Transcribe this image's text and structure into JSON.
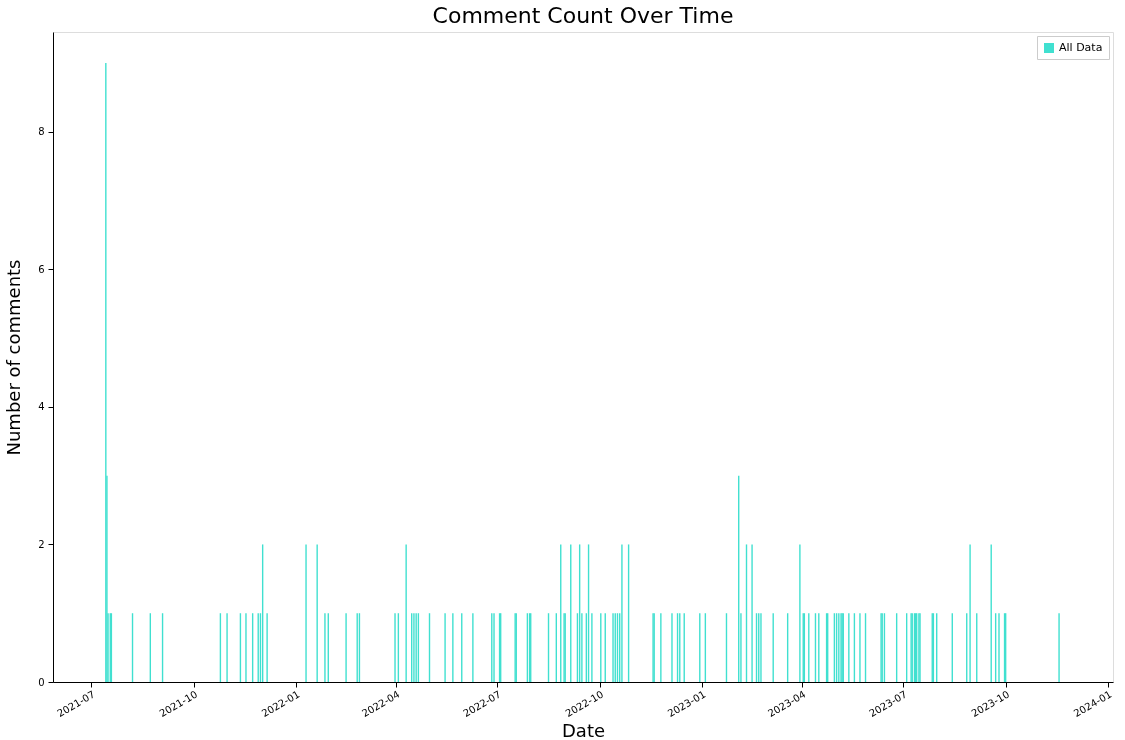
{
  "chart_data": {
    "type": "bar",
    "title": "Comment Count Over Time",
    "xlabel": "Date",
    "ylabel": "Number of comments",
    "x": [
      "2021-07-14",
      "2021-07-15",
      "2021-07-16",
      "2021-07-18",
      "2021-07-19",
      "2021-08-07",
      "2021-08-23",
      "2021-09-03",
      "2021-10-25",
      "2021-10-31",
      "2021-11-12",
      "2021-11-17",
      "2021-11-23",
      "2021-11-28",
      "2021-11-30",
      "2021-12-02",
      "2021-12-06",
      "2022-01-10",
      "2022-01-20",
      "2022-01-27",
      "2022-01-30",
      "2022-02-15",
      "2022-02-25",
      "2022-02-27",
      "2022-03-31",
      "2022-04-03",
      "2022-04-10",
      "2022-04-15",
      "2022-04-17",
      "2022-04-19",
      "2022-04-21",
      "2022-05-01",
      "2022-05-15",
      "2022-05-22",
      "2022-05-30",
      "2022-06-09",
      "2022-06-26",
      "2022-06-28",
      "2022-07-03",
      "2022-07-04",
      "2022-07-17",
      "2022-07-18",
      "2022-07-28",
      "2022-07-30",
      "2022-07-31",
      "2022-08-16",
      "2022-08-23",
      "2022-08-27",
      "2022-08-30",
      "2022-08-31",
      "2022-09-05",
      "2022-09-11",
      "2022-09-13",
      "2022-09-15",
      "2022-09-19",
      "2022-09-21",
      "2022-09-24",
      "2022-10-02",
      "2022-10-06",
      "2022-10-13",
      "2022-10-15",
      "2022-10-17",
      "2022-10-19",
      "2022-10-21",
      "2022-10-27",
      "2022-11-18",
      "2022-11-19",
      "2022-11-25",
      "2022-12-05",
      "2022-12-10",
      "2022-12-12",
      "2022-12-16",
      "2022-12-30",
      "2023-01-04",
      "2023-01-23",
      "2023-02-03",
      "2023-02-05",
      "2023-02-10",
      "2023-02-15",
      "2023-02-19",
      "2023-02-21",
      "2023-02-23",
      "2023-03-06",
      "2023-03-19",
      "2023-03-30",
      "2023-04-02",
      "2023-04-03",
      "2023-04-07",
      "2023-04-13",
      "2023-04-16",
      "2023-04-23",
      "2023-04-24",
      "2023-04-30",
      "2023-05-02",
      "2023-05-04",
      "2023-05-06",
      "2023-05-07",
      "2023-05-08",
      "2023-05-13",
      "2023-05-18",
      "2023-05-23",
      "2023-05-28",
      "2023-06-11",
      "2023-06-12",
      "2023-06-14",
      "2023-06-25",
      "2023-07-04",
      "2023-07-08",
      "2023-07-09",
      "2023-07-11",
      "2023-07-12",
      "2023-07-13",
      "2023-07-15",
      "2023-07-16",
      "2023-07-27",
      "2023-07-28",
      "2023-07-31",
      "2023-08-14",
      "2023-08-27",
      "2023-08-30",
      "2023-09-05",
      "2023-09-18",
      "2023-09-22",
      "2023-09-25",
      "2023-09-30",
      "2023-10-01",
      "2023-11-18"
    ],
    "series": [
      {
        "name": "All Data",
        "color": "#40e0d0",
        "values": [
          9,
          3,
          1,
          1,
          1,
          1,
          1,
          1,
          1,
          1,
          1,
          1,
          1,
          1,
          1,
          2,
          1,
          2,
          2,
          1,
          1,
          1,
          1,
          1,
          1,
          1,
          2,
          1,
          1,
          1,
          1,
          1,
          1,
          1,
          1,
          1,
          1,
          1,
          1,
          1,
          1,
          1,
          1,
          1,
          1,
          1,
          1,
          2,
          1,
          1,
          2,
          1,
          2,
          1,
          1,
          2,
          1,
          1,
          1,
          1,
          1,
          1,
          1,
          2,
          2,
          1,
          1,
          1,
          1,
          1,
          1,
          1,
          1,
          1,
          1,
          3,
          1,
          2,
          2,
          1,
          1,
          1,
          1,
          1,
          2,
          1,
          1,
          1,
          1,
          1,
          1,
          1,
          1,
          1,
          1,
          1,
          1,
          1,
          1,
          1,
          1,
          1,
          1,
          1,
          1,
          1,
          1,
          1,
          1,
          1,
          1,
          1,
          1,
          1,
          1,
          1,
          1,
          1,
          1,
          2,
          1,
          2,
          1,
          1,
          1,
          1,
          1
        ]
      }
    ],
    "xlim": [
      "2021-06-01",
      "2024-01-01"
    ],
    "xticks": [
      {
        "value": "2021-07-01",
        "label": "2021-07"
      },
      {
        "value": "2021-10-01",
        "label": "2021-10"
      },
      {
        "value": "2022-01-01",
        "label": "2022-01"
      },
      {
        "value": "2022-04-01",
        "label": "2022-04"
      },
      {
        "value": "2022-07-01",
        "label": "2022-07"
      },
      {
        "value": "2022-10-01",
        "label": "2022-10"
      },
      {
        "value": "2023-01-01",
        "label": "2023-01"
      },
      {
        "value": "2023-04-01",
        "label": "2023-04"
      },
      {
        "value": "2023-07-01",
        "label": "2023-07"
      },
      {
        "value": "2023-10-01",
        "label": "2023-10"
      },
      {
        "value": "2024-01-01",
        "label": "2024-01"
      }
    ],
    "ylim": [
      0,
      9.45
    ],
    "yticks": [
      0,
      2,
      4,
      6,
      8
    ],
    "grid": false,
    "legend": "top right"
  }
}
